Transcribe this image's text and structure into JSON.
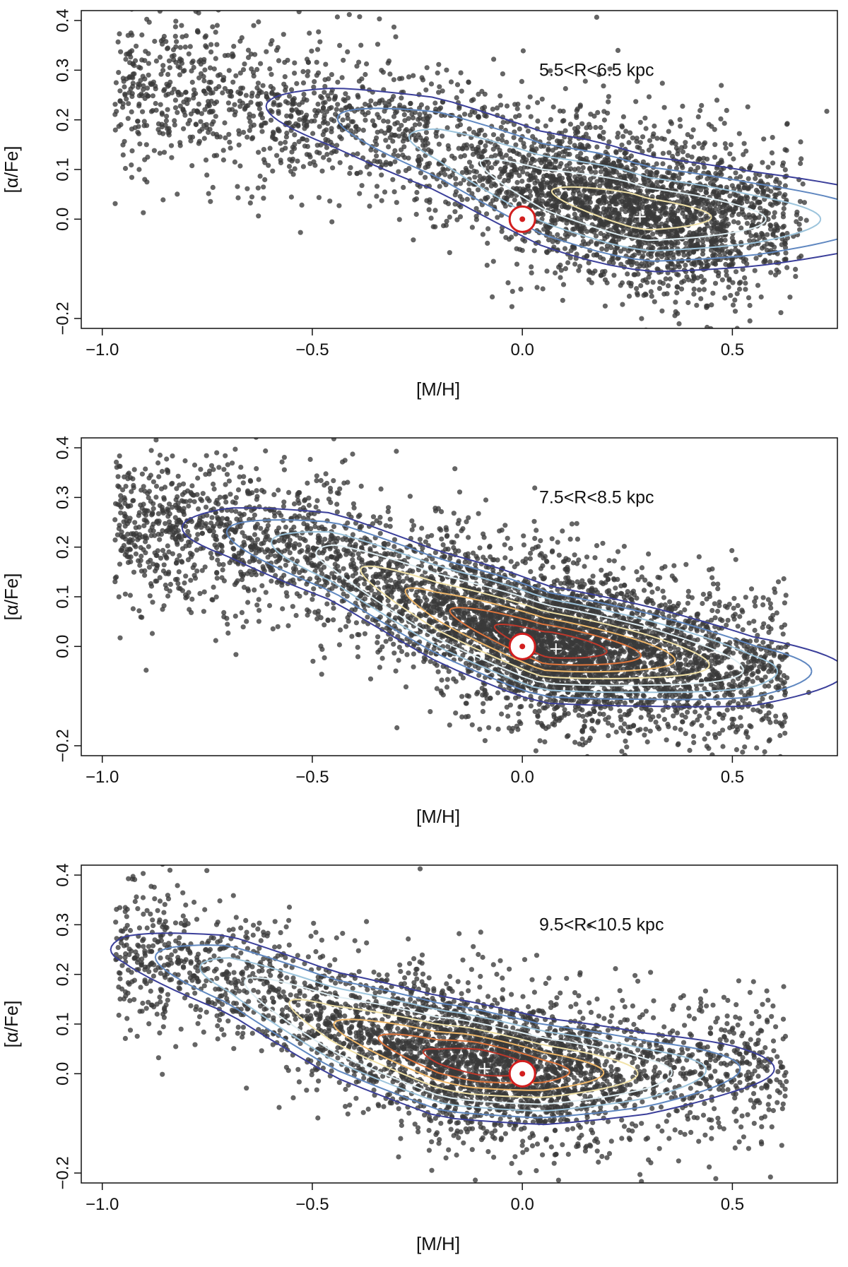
{
  "figure": {
    "xlabel": "[M/H]",
    "ylabel": "[α/Fe]"
  },
  "colors": {
    "points": "#3a3a3a",
    "contours": [
      "#3b3f9a",
      "#5f87c0",
      "#9cc4dc",
      "#dfeef3",
      "#f2e3a8",
      "#f1b96a",
      "#e0763c",
      "#c0392b",
      "#8b1616"
    ],
    "sun": "#d21f1f",
    "marker": "#ffffff"
  },
  "chart_data": [
    {
      "type": "scatter",
      "subtitle": "5.5<R<6.5 kpc",
      "xlabel": "[M/H]",
      "ylabel": "[α/Fe]",
      "xlim": [
        -1.05,
        0.75
      ],
      "ylim": [
        -0.22,
        0.42
      ],
      "xticks": [
        "−1.0",
        "−0.5",
        "0.0",
        "0.5"
      ],
      "yticks": [
        "−0.2",
        "0.0",
        "0.1",
        "0.2",
        "0.3",
        "0.4"
      ],
      "density_peak": [
        0.28,
        0.005
      ],
      "sun": [
        0.0,
        0.0
      ],
      "ridge": [
        [
          -0.95,
          0.26
        ],
        [
          -0.7,
          0.24
        ],
        [
          -0.45,
          0.205
        ],
        [
          -0.2,
          0.15
        ],
        [
          0.05,
          0.06
        ],
        [
          0.3,
          0.01
        ],
        [
          0.55,
          0.0
        ]
      ],
      "scatter_width": 0.09,
      "contour_levels": 5
    },
    {
      "type": "scatter",
      "subtitle": "7.5<R<8.5 kpc",
      "xlabel": "[M/H]",
      "ylabel": "[α/Fe]",
      "xlim": [
        -1.05,
        0.75
      ],
      "ylim": [
        -0.22,
        0.42
      ],
      "xticks": [
        "−1.0",
        "−0.5",
        "0.0",
        "0.5"
      ],
      "yticks": [
        "−0.2",
        "0.0",
        "0.1",
        "0.2",
        "0.3",
        "0.4"
      ],
      "density_peak": [
        0.08,
        -0.005
      ],
      "sun": [
        0.0,
        0.0
      ],
      "ridge": [
        [
          -0.95,
          0.25
        ],
        [
          -0.7,
          0.23
        ],
        [
          -0.45,
          0.18
        ],
        [
          -0.2,
          0.08
        ],
        [
          0.05,
          0.005
        ],
        [
          0.3,
          -0.02
        ],
        [
          0.55,
          -0.05
        ]
      ],
      "scatter_width": 0.085,
      "contour_levels": 8
    },
    {
      "type": "scatter",
      "subtitle": "9.5<R<10.5 kpc",
      "xlabel": "[M/H]",
      "ylabel": "[α/Fe]",
      "xlim": [
        -1.05,
        0.75
      ],
      "ylim": [
        -0.22,
        0.42
      ],
      "xticks": [
        "−1.0",
        "−0.5",
        "0.0",
        "0.5"
      ],
      "yticks": [
        "−0.2",
        "0.0",
        "0.1",
        "0.2",
        "0.3",
        "0.4"
      ],
      "density_peak": [
        -0.09,
        0.01
      ],
      "sun": [
        0.0,
        0.0
      ],
      "ridge": [
        [
          -0.95,
          0.25
        ],
        [
          -0.7,
          0.2
        ],
        [
          -0.45,
          0.1
        ],
        [
          -0.2,
          0.035
        ],
        [
          0.05,
          0.005
        ],
        [
          0.3,
          0.0
        ],
        [
          0.5,
          0.01
        ]
      ],
      "scatter_width": 0.08,
      "contour_levels": 8
    }
  ]
}
